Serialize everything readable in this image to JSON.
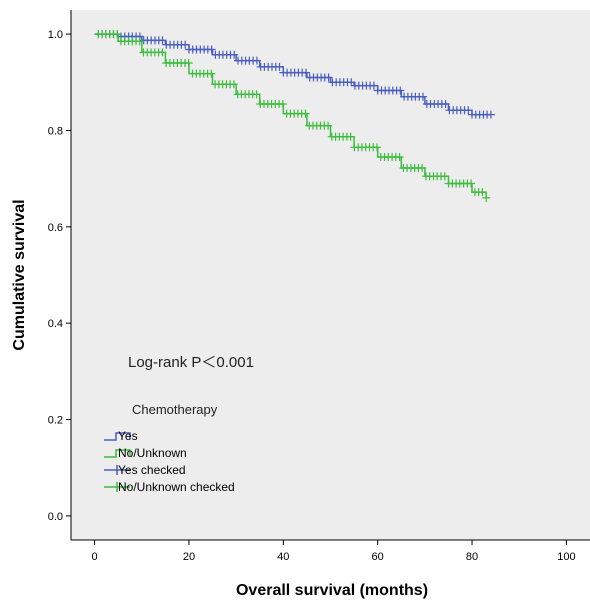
{
  "chart_data": {
    "type": "line",
    "subtype": "kaplan-meier",
    "title": "",
    "xlabel": "Overall survival (months)",
    "ylabel": "Cumulative survival",
    "xlim": [
      -5,
      105
    ],
    "ylim": [
      -0.05,
      1.05
    ],
    "x_ticks": [
      0,
      20,
      40,
      60,
      80,
      100
    ],
    "y_ticks": [
      0.0,
      0.2,
      0.4,
      0.6,
      0.8,
      1.0
    ],
    "x_tick_labels": [
      "0",
      "20",
      "40",
      "60",
      "80",
      "100"
    ],
    "y_tick_labels": [
      "0.0",
      "0.2",
      "0.4",
      "0.6",
      "0.8",
      "1.0"
    ],
    "grid": false,
    "plot_background": "#ededed",
    "annotation": "Log-rank P＜0.001",
    "legend": {
      "title": "Chemotherapy",
      "position": "bottom-left",
      "entries": [
        {
          "label": "Yes",
          "kind": "step",
          "color": "#4a5ec0"
        },
        {
          "label": "No/Unknown",
          "kind": "step",
          "color": "#3dbd3d"
        },
        {
          "label": "Yes checked",
          "kind": "censor",
          "color": "#4a5ec0"
        },
        {
          "label": "No/Unknown checked",
          "kind": "censor",
          "color": "#3dbd3d"
        }
      ]
    },
    "series": [
      {
        "name": "Yes",
        "color": "#4a5ec0",
        "x": [
          0,
          5,
          10,
          15,
          20,
          25,
          30,
          35,
          40,
          45,
          50,
          55,
          60,
          65,
          70,
          75,
          80,
          84
        ],
        "y": [
          1.0,
          0.995,
          0.987,
          0.978,
          0.968,
          0.957,
          0.945,
          0.932,
          0.92,
          0.91,
          0.9,
          0.893,
          0.883,
          0.87,
          0.855,
          0.842,
          0.833,
          0.833
        ]
      },
      {
        "name": "No/Unknown",
        "color": "#3dbd3d",
        "x": [
          0,
          5,
          10,
          15,
          20,
          25,
          30,
          35,
          40,
          45,
          50,
          55,
          60,
          65,
          70,
          75,
          80,
          83
        ],
        "y": [
          1.0,
          0.985,
          0.962,
          0.94,
          0.918,
          0.896,
          0.875,
          0.855,
          0.835,
          0.81,
          0.787,
          0.765,
          0.745,
          0.722,
          0.705,
          0.69,
          0.672,
          0.66
        ]
      }
    ]
  }
}
